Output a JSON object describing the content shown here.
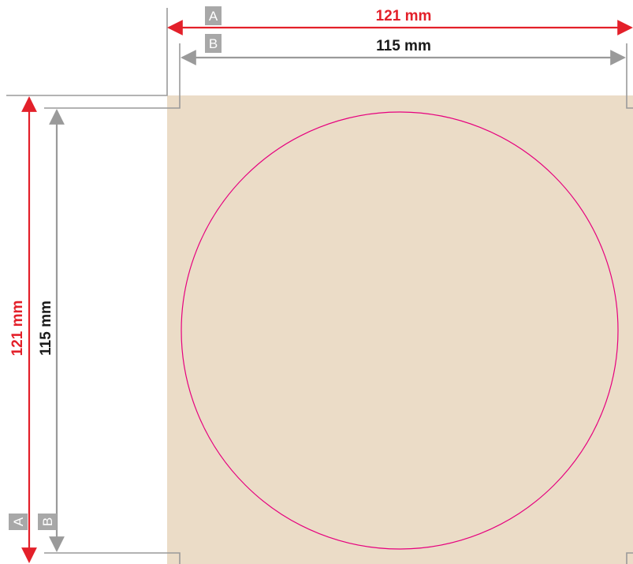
{
  "dimensions": {
    "outer": {
      "tag": "A",
      "label": "121 mm",
      "color": "#e3202a"
    },
    "inner": {
      "tag": "B",
      "label": "115 mm",
      "color": "#1a1a1a"
    }
  },
  "colors": {
    "panel": "#ebdcc7",
    "circle": "#e6007e",
    "guide": "#9a9a9a",
    "tag_fill": "#a8a8a8"
  }
}
